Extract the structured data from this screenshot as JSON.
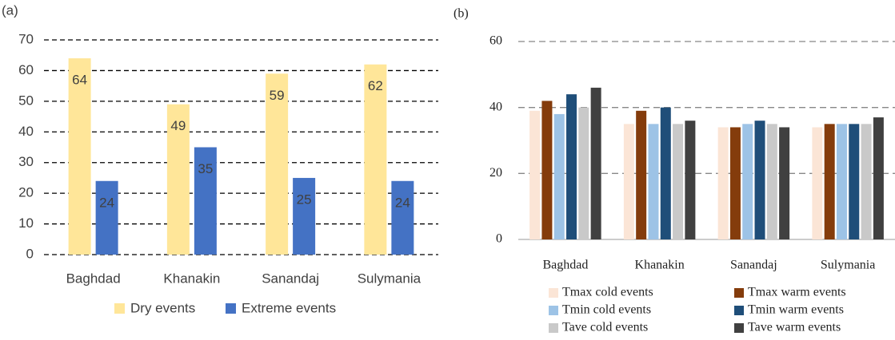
{
  "chart_data": [
    {
      "type": "bar",
      "label": "(a)",
      "categories": [
        "Baghdad",
        "Khanakin",
        "Sanandaj",
        "Sulymania"
      ],
      "series": [
        {
          "name": "Dry events",
          "color": "#ffe699",
          "values": [
            64,
            49,
            59,
            62
          ]
        },
        {
          "name": "Extreme events",
          "color": "#4472c4",
          "values": [
            24,
            35,
            25,
            24
          ]
        }
      ],
      "ylim": [
        0,
        70
      ],
      "yticks": [
        0,
        10,
        20,
        30,
        40,
        50,
        60,
        70
      ],
      "grid": true,
      "data_labels": true,
      "legend": "bottom"
    },
    {
      "type": "bar",
      "label": "(b)",
      "categories": [
        "Baghdad",
        "Khanakin",
        "Sanandaj",
        "Sulymania"
      ],
      "series": [
        {
          "name": "Tmax cold events",
          "color": "#fbe5d6",
          "values": [
            39,
            35,
            34,
            34
          ]
        },
        {
          "name": "Tmax warm events",
          "color": "#843c0c",
          "values": [
            42,
            39,
            34,
            35
          ]
        },
        {
          "name": "Tmin cold events",
          "color": "#9dc3e6",
          "values": [
            38,
            35,
            35,
            35
          ]
        },
        {
          "name": "Tmin warm events",
          "color": "#1f4e79",
          "values": [
            44,
            40,
            36,
            35
          ]
        },
        {
          "name": "Tave cold events",
          "color": "#c9c9c9",
          "values": [
            40,
            35,
            35,
            35
          ]
        },
        {
          "name": "Tave warm events",
          "color": "#404040",
          "values": [
            46,
            36,
            34,
            37
          ]
        }
      ],
      "ylim": [
        0,
        60
      ],
      "yticks": [
        0,
        20,
        40,
        60
      ],
      "grid": true,
      "data_labels": false,
      "legend": "bottom"
    }
  ]
}
